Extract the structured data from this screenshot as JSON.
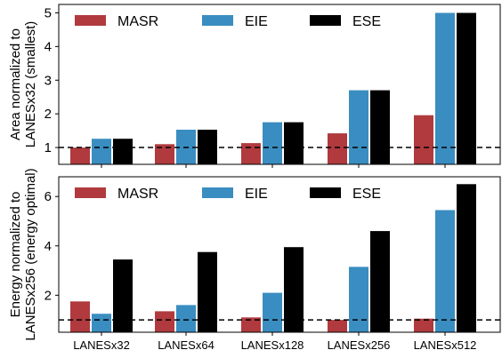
{
  "chart_data": [
    {
      "type": "bar",
      "ylabel_lines": [
        "Area normalized to",
        "LANESx32 (smallest)"
      ],
      "ylim": [
        0.5,
        5.25
      ],
      "yticks": [
        1,
        2,
        3,
        4,
        5
      ],
      "reference_line": 1,
      "grid": false,
      "legend_position": "top",
      "categories": [
        "LANESx32",
        "LANESx64",
        "LANESx128",
        "LANESx256",
        "LANESx512"
      ],
      "series": [
        {
          "name": "MASR",
          "color": "#B03A3E",
          "values": [
            1.0,
            1.1,
            1.13,
            1.42,
            1.96
          ]
        },
        {
          "name": "EIE",
          "color": "#3A8DC0",
          "values": [
            1.26,
            1.53,
            1.75,
            2.7,
            5.0
          ]
        },
        {
          "name": "ESE",
          "color": "#000000",
          "values": [
            1.26,
            1.53,
            1.75,
            2.7,
            5.0
          ]
        }
      ]
    },
    {
      "type": "bar",
      "ylabel_lines": [
        "Energy normalized to",
        "LANESx256 (energy optimal)"
      ],
      "ylim": [
        0.5,
        6.8
      ],
      "yticks": [
        2,
        4,
        6
      ],
      "reference_line": 1,
      "grid": false,
      "legend_position": "top",
      "categories": [
        "LANESx32",
        "LANESx64",
        "LANESx128",
        "LANESx256",
        "LANESx512"
      ],
      "series": [
        {
          "name": "MASR",
          "color": "#B03A3E",
          "values": [
            1.75,
            1.35,
            1.1,
            1.0,
            1.05
          ]
        },
        {
          "name": "EIE",
          "color": "#3A8DC0",
          "values": [
            1.25,
            1.6,
            2.1,
            3.15,
            5.45
          ]
        },
        {
          "name": "ESE",
          "color": "#000000",
          "values": [
            3.45,
            3.75,
            3.95,
            4.6,
            6.5
          ]
        }
      ]
    }
  ]
}
